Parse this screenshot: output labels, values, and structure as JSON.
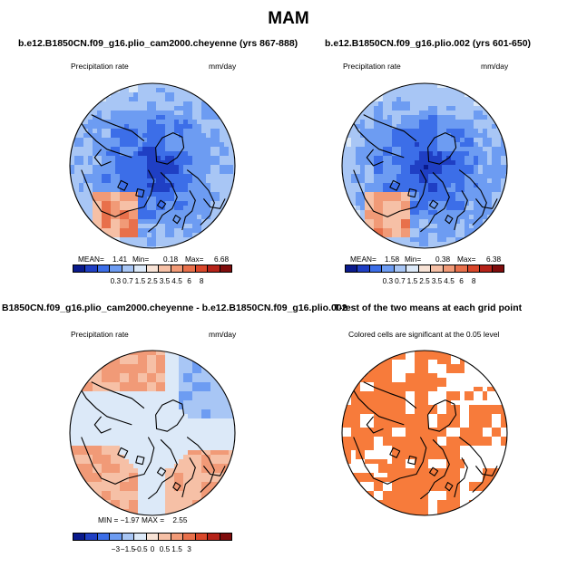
{
  "title": "MAM",
  "panels": [
    {
      "title": "b.e12.B1850CN.f09_g16.plio_cam2000.cheyenne (yrs 867-888)",
      "left_label": "Precipitation rate",
      "right_label": "mm/day",
      "stats": {
        "mean_label": "MEAN=",
        "mean": "1.41",
        "min_label": "Min=",
        "min": "0.18",
        "max_label": "Max=",
        "max": "6.68"
      }
    },
    {
      "title": "b.e12.B1850CN.f09_g16.plio.002 (yrs 601-650)",
      "left_label": "Precipitation rate",
      "right_label": "mm/day",
      "stats": {
        "mean_label": "MEAN=",
        "mean": "1.58",
        "min_label": "Min=",
        "min": "0.38",
        "max_label": "Max=",
        "max": "6.38"
      }
    },
    {
      "title": "B1850CN.f09_g16.plio_cam2000.cheyenne - b.e12.B1850CN.f09_g16.plio.002",
      "left_label": "Precipitation rate",
      "right_label": "mm/day",
      "stats_text": "MIN = −1.97 MAX =    2.55"
    },
    {
      "title": "T-test of the two means at each grid point",
      "subtitle": "Colored cells are significant at the 0.05 level"
    }
  ],
  "chart_data": [
    {
      "type": "heatmap",
      "projection": "north-polar-stereographic",
      "variable": "Precipitation rate",
      "units": "mm/day",
      "levels": [
        "0.3",
        "0.7",
        "1.5",
        "2.5",
        "3.5",
        "4.5",
        "6",
        "8"
      ],
      "colors": [
        "#0a1a8c",
        "#1f3fc4",
        "#3c6ee8",
        "#6d9cf2",
        "#a8c6f5",
        "#dce9f8",
        "#f8e3d6",
        "#f6c0a6",
        "#f19a77",
        "#e8704b",
        "#d9472a",
        "#b52218",
        "#7f0c0c"
      ],
      "mean": 1.41,
      "min": 0.18,
      "max": 6.68
    },
    {
      "type": "heatmap",
      "projection": "north-polar-stereographic",
      "variable": "Precipitation rate",
      "units": "mm/day",
      "levels": [
        "0.3",
        "0.7",
        "1.5",
        "2.5",
        "3.5",
        "4.5",
        "6",
        "8"
      ],
      "colors": [
        "#0a1a8c",
        "#1f3fc4",
        "#3c6ee8",
        "#6d9cf2",
        "#a8c6f5",
        "#dce9f8",
        "#f8e3d6",
        "#f6c0a6",
        "#f19a77",
        "#e8704b",
        "#d9472a",
        "#b52218",
        "#7f0c0c"
      ],
      "mean": 1.58,
      "min": 0.38,
      "max": 6.38
    },
    {
      "type": "heatmap",
      "projection": "north-polar-stereographic",
      "variable": "Precipitation rate difference",
      "units": "mm/day",
      "levels": [
        "−3",
        "−1.5",
        "−0.5",
        "0",
        "0.5",
        "1.5",
        "3"
      ],
      "colors": [
        "#0a1a8c",
        "#1f3fc4",
        "#3c6ee8",
        "#6d9cf2",
        "#a8c6f5",
        "#dce9f8",
        "#f8e3d6",
        "#f6c0a6",
        "#f19a77",
        "#e8704b",
        "#d9472a",
        "#b52218",
        "#7f0c0c"
      ],
      "min": -1.97,
      "max": 2.55
    },
    {
      "type": "heatmap",
      "projection": "north-polar-stereographic",
      "variable": "T-test significance",
      "significant_color": "#f77b3b"
    }
  ]
}
